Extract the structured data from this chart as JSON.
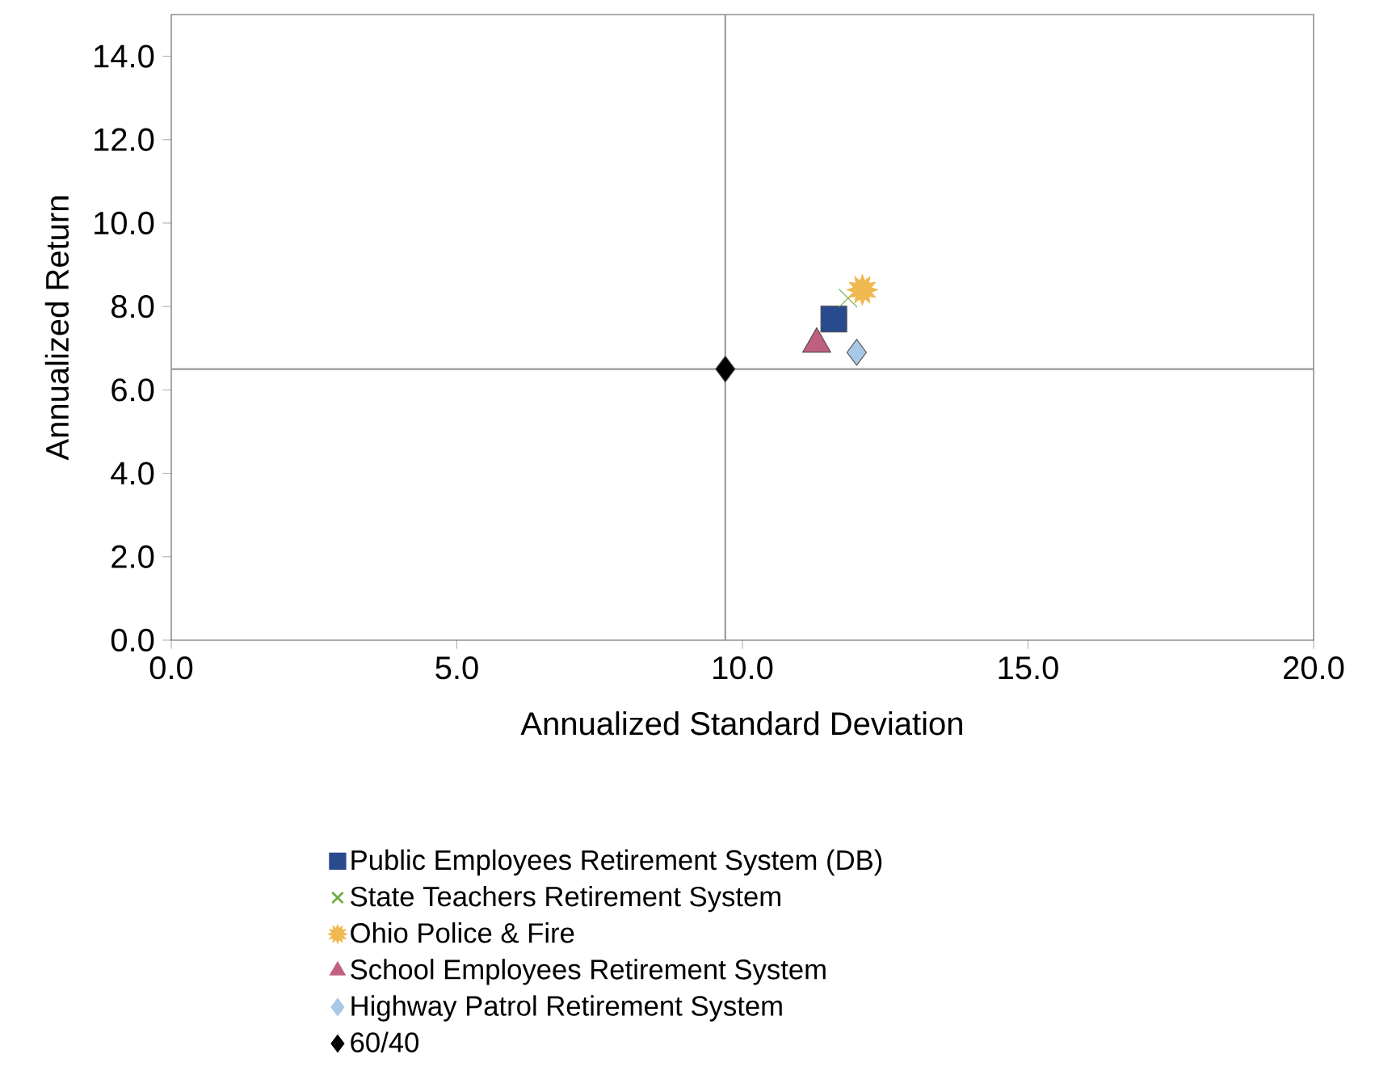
{
  "chart_data": {
    "type": "scatter",
    "xlabel": "Annualized Standard Deviation",
    "ylabel": "Annualized Return",
    "xlim": [
      0,
      20
    ],
    "ylim": [
      0,
      15
    ],
    "xticks": [
      {
        "value": 0,
        "label": "0.0"
      },
      {
        "value": 5,
        "label": "5.0"
      },
      {
        "value": 10,
        "label": "10.0"
      },
      {
        "value": 15,
        "label": "15.0"
      },
      {
        "value": 20,
        "label": "20.0"
      }
    ],
    "yticks": [
      {
        "value": 0,
        "label": "0.0"
      },
      {
        "value": 2,
        "label": "2.0"
      },
      {
        "value": 4,
        "label": "4.0"
      },
      {
        "value": 6,
        "label": "6.0"
      },
      {
        "value": 8,
        "label": "8.0"
      },
      {
        "value": 10,
        "label": "10.0"
      },
      {
        "value": 12,
        "label": "12.0"
      },
      {
        "value": 14,
        "label": "14.0"
      }
    ],
    "grid": false,
    "legend": "bottom",
    "series": [
      {
        "name": "Public Employees Retirement System (DB)",
        "color": "#2a4a8e",
        "marker": "square",
        "x": [
          11.6
        ],
        "values": [
          7.7
        ]
      },
      {
        "name": "State Teachers Retirement System",
        "color": "#6aaa3a",
        "marker": "cross",
        "x": [
          11.85
        ],
        "values": [
          8.2
        ]
      },
      {
        "name": "Ohio Police & Fire",
        "color": "#f0b850",
        "marker": "star",
        "x": [
          12.1
        ],
        "values": [
          8.4
        ]
      },
      {
        "name": "School Employees Retirement System",
        "color": "#c06080",
        "marker": "triangle",
        "x": [
          11.3
        ],
        "values": [
          7.1
        ]
      },
      {
        "name": "Highway Patrol Retirement System",
        "color": "#a8c8e8",
        "marker": "diamond",
        "x": [
          12.0
        ],
        "values": [
          6.9
        ]
      },
      {
        "name": "60/40",
        "color": "#000000",
        "marker": "diamond",
        "x": [
          9.7
        ],
        "values": [
          6.5
        ]
      }
    ],
    "ref_lines": [
      {
        "axis": "x",
        "value": 9.7,
        "color": "#999999"
      },
      {
        "axis": "y",
        "value": 6.5,
        "color": "#999999"
      }
    ]
  }
}
